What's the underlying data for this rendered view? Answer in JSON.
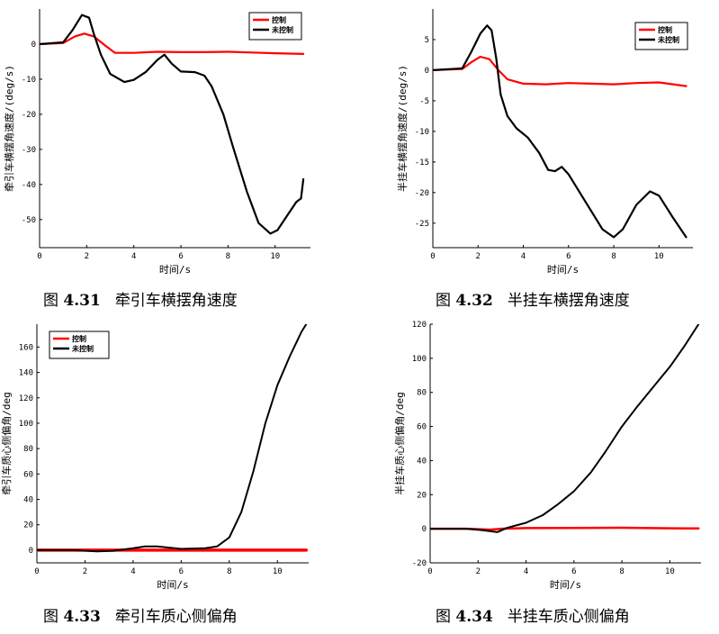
{
  "chart_data": [
    {
      "type": "line",
      "caption_fig": "图",
      "caption_num": "4.31",
      "caption_text": "牵引车横摆角速度",
      "xlabel": "时间/s",
      "ylabel": "牵引车横摆角速度/(deg/s)",
      "xlim": [
        0,
        11.5
      ],
      "ylim": [
        -58,
        10
      ],
      "xticks": [
        0,
        2,
        4,
        6,
        8,
        10
      ],
      "yticks": [
        0,
        -10,
        -20,
        -30,
        -40,
        -50
      ],
      "legend": {
        "placement": "top-right",
        "entries": [
          "控制",
          "未控制"
        ]
      },
      "series": [
        {
          "name": "控制",
          "color": "#ff0000",
          "width": 2.2,
          "x": [
            0,
            1,
            1.5,
            1.9,
            2.3,
            2.8,
            3.2,
            4,
            5,
            6,
            7,
            8,
            9,
            10,
            11.2
          ],
          "y": [
            0,
            0.3,
            2.2,
            3.0,
            2.2,
            -0.5,
            -2.5,
            -2.5,
            -2.2,
            -2.3,
            -2.3,
            -2.2,
            -2.4,
            -2.6,
            -2.8
          ]
        },
        {
          "name": "未控制",
          "color": "#000000",
          "width": 2.2,
          "x": [
            0,
            1,
            1.4,
            1.8,
            2.1,
            2.3,
            2.6,
            3.0,
            3.6,
            4.0,
            4.5,
            5.0,
            5.3,
            5.6,
            6.0,
            6.6,
            7.0,
            7.3,
            7.8,
            8.2,
            8.8,
            9.3,
            9.8,
            10.1,
            10.5,
            10.9,
            11.1,
            11.2
          ],
          "y": [
            0,
            0.5,
            4,
            8.3,
            7.5,
            3,
            -3,
            -8.5,
            -10.8,
            -10.2,
            -8,
            -4.5,
            -3,
            -5.5,
            -7.8,
            -8,
            -9,
            -12,
            -20,
            -29,
            -42,
            -51,
            -54,
            -53,
            -49,
            -45,
            -44,
            -38.5
          ]
        }
      ]
    },
    {
      "type": "line",
      "caption_fig": "图",
      "caption_num": "4.32",
      "caption_text": "半挂车横摆角速度",
      "xlabel": "时间/s",
      "ylabel": "半挂车横摆角速度/(deg/s)",
      "xlim": [
        0,
        11.5
      ],
      "ylim": [
        -29,
        10
      ],
      "xticks": [
        0,
        2,
        4,
        6,
        8,
        10
      ],
      "yticks": [
        5,
        0,
        -5,
        -10,
        -15,
        -20,
        -25
      ],
      "legend": {
        "placement": "top-right",
        "entries": [
          "控制",
          "未控制"
        ]
      },
      "series": [
        {
          "name": "控制",
          "color": "#ff0000",
          "width": 2.2,
          "x": [
            0,
            1.3,
            1.7,
            2.1,
            2.5,
            2.9,
            3.3,
            4,
            5,
            6,
            7,
            8,
            9,
            10,
            11.2
          ],
          "y": [
            0,
            0.2,
            1.3,
            2.2,
            1.8,
            0,
            -1.5,
            -2.2,
            -2.3,
            -2.1,
            -2.2,
            -2.3,
            -2.1,
            -2.0,
            -2.6
          ]
        },
        {
          "name": "未控制",
          "color": "#000000",
          "width": 2.2,
          "x": [
            0,
            1.3,
            1.7,
            2.1,
            2.4,
            2.6,
            2.8,
            3.0,
            3.3,
            3.7,
            4.2,
            4.7,
            5.1,
            5.4,
            5.7,
            6.0,
            6.5,
            7.0,
            7.5,
            8.0,
            8.4,
            9.0,
            9.6,
            10.0,
            10.6,
            11.2
          ],
          "y": [
            0,
            0.3,
            3,
            6,
            7.3,
            6.5,
            2,
            -4,
            -7.5,
            -9.5,
            -11,
            -13.5,
            -16.3,
            -16.5,
            -15.8,
            -17,
            -20,
            -23,
            -26,
            -27.3,
            -26,
            -22,
            -19.8,
            -20.5,
            -24,
            -27.3
          ]
        }
      ]
    },
    {
      "type": "line",
      "caption_fig": "图",
      "caption_num": "4.33",
      "caption_text": "牵引车质心侧偏角",
      "xlabel": "时间/s",
      "ylabel": "牵引车质心侧偏角/deg",
      "xlim": [
        0,
        11.3
      ],
      "ylim": [
        -10,
        178
      ],
      "xticks": [
        0,
        2,
        4,
        6,
        8,
        10
      ],
      "yticks": [
        0,
        20,
        40,
        60,
        80,
        100,
        120,
        140,
        160
      ],
      "legend": {
        "placement": "top-left",
        "entries": [
          "控制",
          "未控制"
        ]
      },
      "series": [
        {
          "name": "控制",
          "color": "#ff0000",
          "width": 3.5,
          "x": [
            0,
            2,
            4,
            6,
            8,
            10,
            11.2
          ],
          "y": [
            0,
            0,
            0,
            0,
            0,
            0,
            0
          ]
        },
        {
          "name": "未控制",
          "color": "#000000",
          "width": 2,
          "x": [
            0,
            1.5,
            2.5,
            3.2,
            4,
            4.5,
            5,
            5.5,
            6,
            7,
            7.5,
            8,
            8.5,
            9,
            9.5,
            10,
            10.5,
            11,
            11.2
          ],
          "y": [
            0,
            0,
            -1,
            -0.5,
            1.5,
            3,
            3,
            2,
            1,
            1.5,
            3,
            10,
            30,
            62,
            100,
            130,
            152,
            172,
            178
          ]
        }
      ]
    },
    {
      "type": "line",
      "caption_fig": "图",
      "caption_num": "4.34",
      "caption_text": "半挂车质心侧偏角",
      "xlabel": "时间/s",
      "ylabel": "半挂车质心侧偏角/deg",
      "xlim": [
        0,
        11.3
      ],
      "ylim": [
        -20,
        120
      ],
      "xticks": [
        0,
        2,
        4,
        6,
        8,
        10
      ],
      "yticks": [
        120,
        100,
        80,
        60,
        40,
        20,
        0,
        -20
      ],
      "legend": {
        "placement": "none",
        "entries": []
      },
      "series": [
        {
          "name": "控制",
          "color": "#ff0000",
          "width": 2.5,
          "x": [
            0,
            1.5,
            2.5,
            3,
            4,
            6,
            8,
            10,
            11.2
          ],
          "y": [
            0,
            0,
            -0.5,
            0,
            0.4,
            0.5,
            0.6,
            0.3,
            0.2
          ]
        },
        {
          "name": "未控制",
          "color": "#000000",
          "width": 2,
          "x": [
            0,
            1.5,
            2.2,
            2.8,
            3.2,
            4,
            4.7,
            5.3,
            6,
            6.7,
            7.3,
            8,
            8.6,
            9.3,
            10,
            10.6,
            11.2
          ],
          "y": [
            0,
            0,
            -0.8,
            -2,
            0.5,
            3.5,
            8,
            14,
            22,
            33,
            45,
            60,
            71,
            83,
            95,
            107,
            120
          ]
        }
      ]
    }
  ]
}
